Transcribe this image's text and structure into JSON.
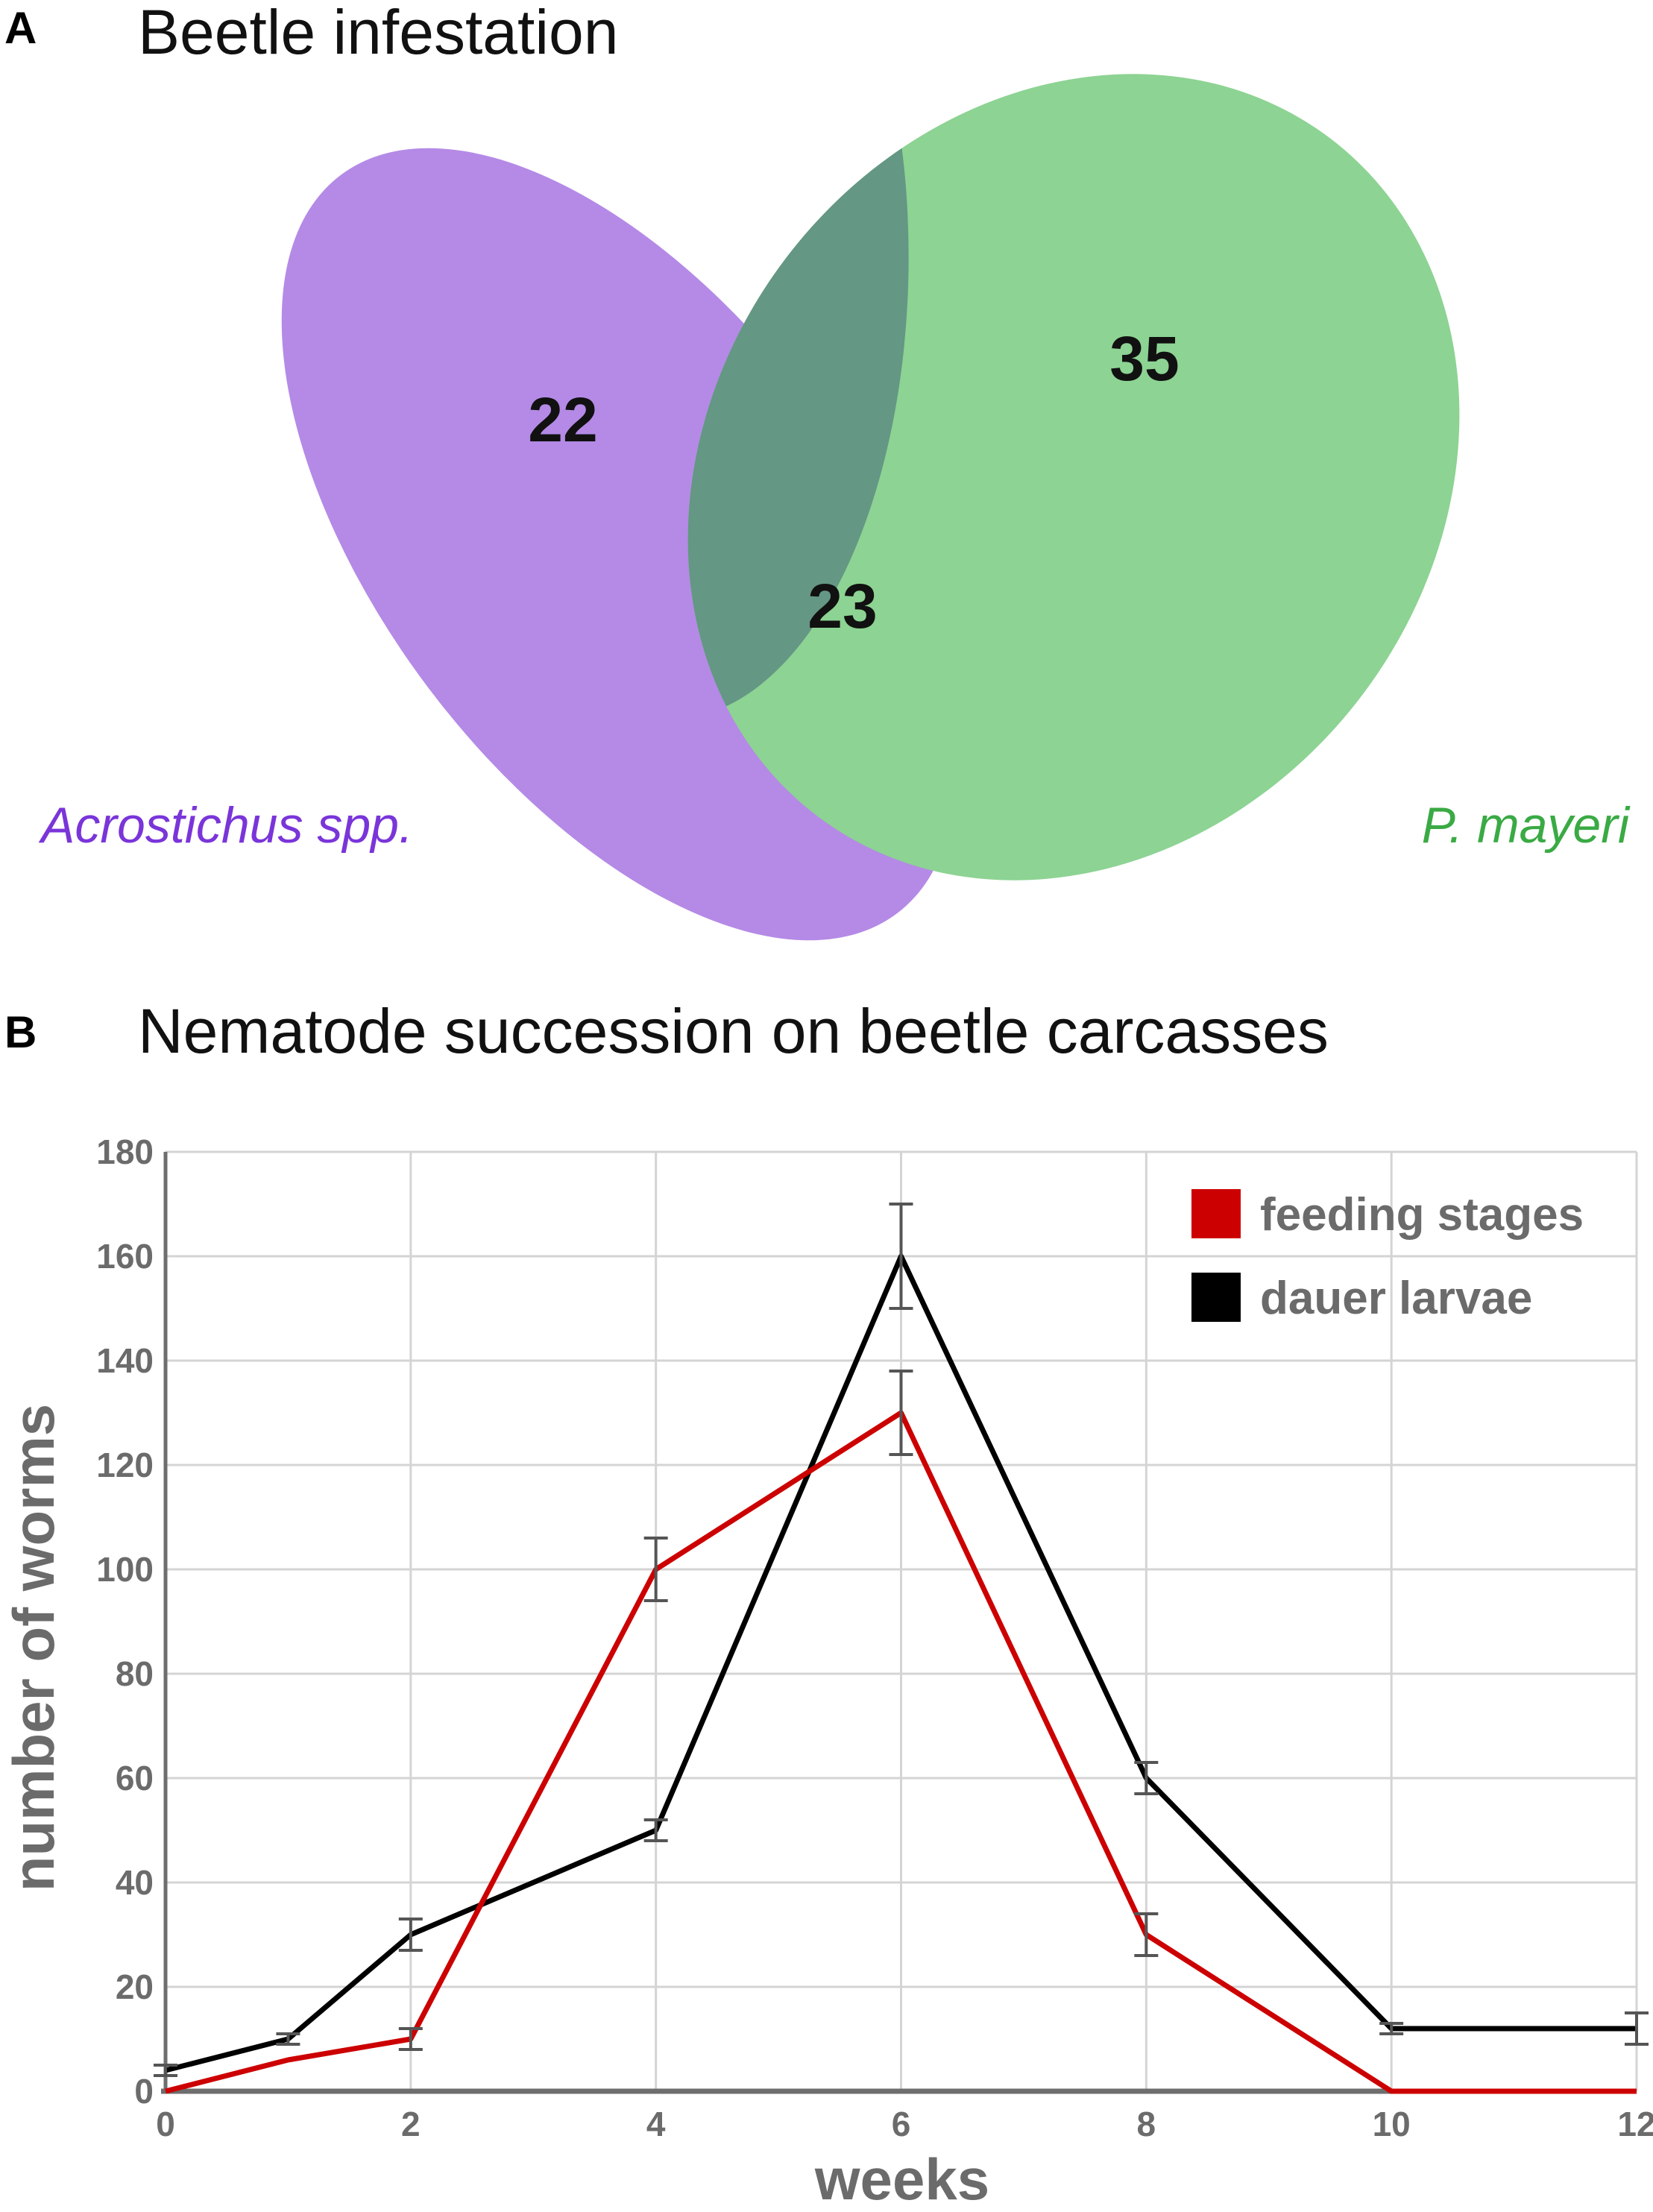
{
  "panel_a": {
    "letter": "A",
    "title": "Beetle infestation",
    "sets": [
      {
        "label": "Acrostichus spp.",
        "count": "22",
        "color": "#b48ae6"
      },
      {
        "label": "P. mayeri",
        "count": "35",
        "color": "#8dd393"
      }
    ],
    "overlap": {
      "count": "23",
      "color": "#649784"
    }
  },
  "panel_b": {
    "letter": "B",
    "title": "Nematode succession on beetle carcasses"
  },
  "chart_data": {
    "type": "line",
    "title": "Nematode succession on beetle carcasses",
    "xlabel": "weeks",
    "ylabel": "number of worms",
    "xlim": [
      0,
      12
    ],
    "ylim": [
      0,
      180
    ],
    "x_ticks": [
      "0",
      "2",
      "4",
      "6",
      "8",
      "10",
      "12"
    ],
    "y_ticks": [
      "0",
      "20",
      "40",
      "60",
      "80",
      "100",
      "120",
      "140",
      "160",
      "180"
    ],
    "grid": true,
    "legend_position": "top-right",
    "series": [
      {
        "name": "feeding stages",
        "color": "#cc0000",
        "x": [
          0,
          1,
          2,
          4,
          6,
          8,
          10,
          12
        ],
        "y": [
          0,
          6,
          10,
          100,
          130,
          30,
          0,
          0
        ],
        "error": [
          0,
          0,
          2,
          6,
          8,
          4,
          0,
          0
        ]
      },
      {
        "name": "dauer larvae",
        "color": "#000000",
        "x": [
          0,
          1,
          2,
          4,
          6,
          8,
          10,
          12
        ],
        "y": [
          4,
          10,
          30,
          50,
          160,
          60,
          12,
          12
        ],
        "error": [
          1,
          1,
          3,
          2,
          10,
          3,
          1,
          3
        ]
      }
    ]
  }
}
